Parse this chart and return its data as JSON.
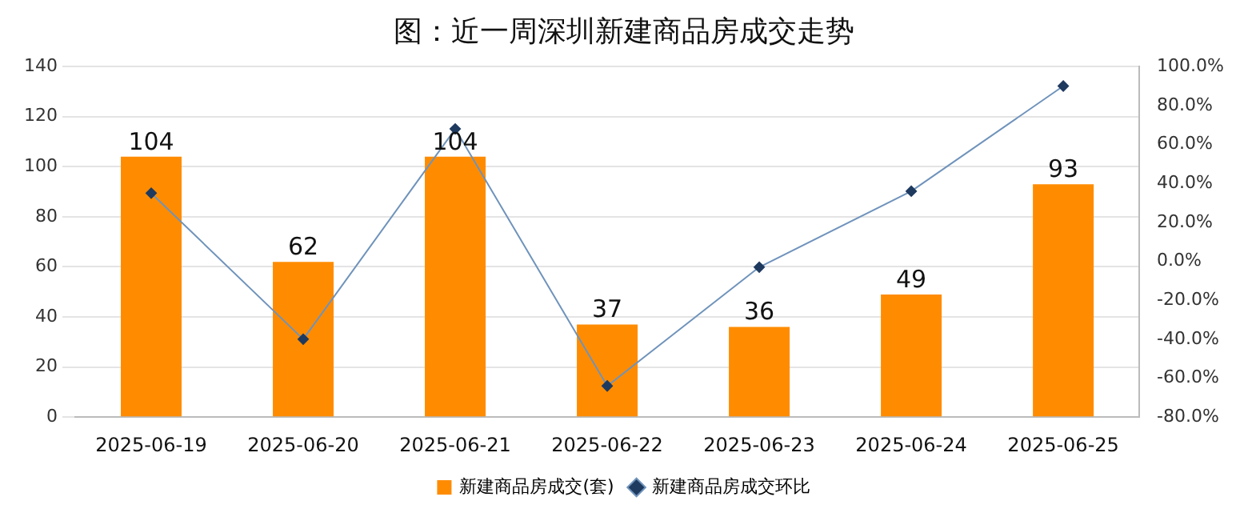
{
  "chart_data": {
    "type": "bar",
    "title": "图：近一周深圳新建商品房成交走势",
    "categories": [
      "2025-06-19",
      "2025-06-20",
      "2025-06-21",
      "2025-06-22",
      "2025-06-23",
      "2025-06-24",
      "2025-06-25"
    ],
    "series": [
      {
        "name": "新建商品房成交(套)",
        "color": "#ff8c00",
        "values": [
          104,
          62,
          104,
          37,
          36,
          49,
          93
        ]
      },
      {
        "name": "新建商品房成交环比",
        "type": "line",
        "axis": "y2",
        "color": "#6f93bb",
        "values": [
          35,
          -40,
          68,
          -64,
          -3,
          36,
          90
        ]
      }
    ],
    "ylim": [
      0,
      140
    ],
    "yticks": [
      0,
      20,
      40,
      60,
      80,
      100,
      120,
      140
    ],
    "y2lim": [
      -80,
      100
    ],
    "y2ticks": [
      {
        "value": -80,
        "label": "-80.0%"
      },
      {
        "value": -60,
        "label": "-60.0%"
      },
      {
        "value": -40,
        "label": "-40.0%"
      },
      {
        "value": -20,
        "label": "-20.0%"
      },
      {
        "value": 0,
        "label": "0.0%"
      },
      {
        "value": 20,
        "label": "20.0%"
      },
      {
        "value": 40,
        "label": "40.0%"
      },
      {
        "value": 60,
        "label": "60.0%"
      },
      {
        "value": 80,
        "label": "80.0%"
      },
      {
        "value": 100,
        "label": "100.0%"
      }
    ],
    "value_labels": [
      "104",
      "62",
      "104",
      "37",
      "36",
      "49",
      "93"
    ],
    "grid": "y",
    "legend": "bottom",
    "marker": "diamond",
    "line_style": "solid"
  }
}
